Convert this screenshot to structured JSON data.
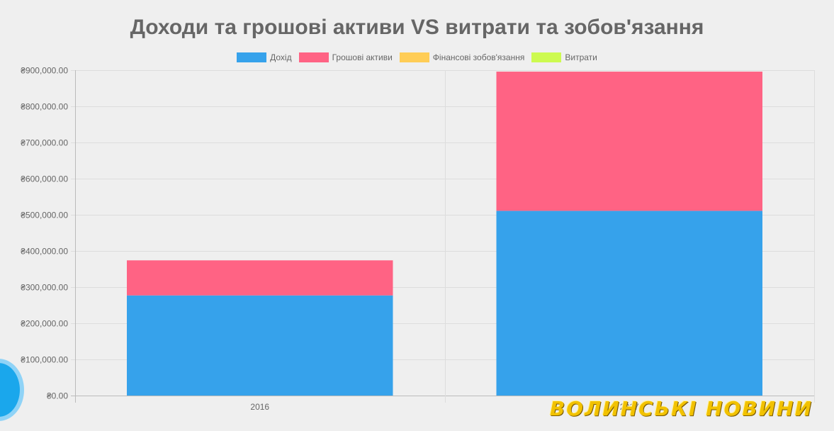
{
  "chart_data": {
    "type": "bar",
    "stacked": true,
    "title": "Доходи та грошові активи VS витрати та зобов'язання",
    "categories": [
      "2016",
      "2017"
    ],
    "series": [
      {
        "name": "Дохід",
        "color": "#36a2eb",
        "values": [
          277000,
          511000
        ]
      },
      {
        "name": "Грошові активи",
        "color": "#ff6384",
        "values": [
          97000,
          385000
        ]
      },
      {
        "name": "Фінансові зобов'язання",
        "color": "#ffcd56",
        "values": [
          0,
          0
        ]
      },
      {
        "name": "Витрати",
        "color": "#cdfa50",
        "values": [
          0,
          0
        ]
      }
    ],
    "ylim": [
      0,
      900000
    ],
    "yticks": [
      "₴0.00",
      "₴100,000.00",
      "₴200,000.00",
      "₴300,000.00",
      "₴400,000.00",
      "₴500,000.00",
      "₴600,000.00",
      "₴700,000.00",
      "₴800,000.00",
      "₴900,000.00"
    ],
    "ytick_values": [
      0,
      100000,
      200000,
      300000,
      400000,
      500000,
      600000,
      700000,
      800000,
      900000
    ],
    "legend_position": "top",
    "grid": true
  },
  "watermark": "ВОЛИНСЬКІ НОВИНИ"
}
